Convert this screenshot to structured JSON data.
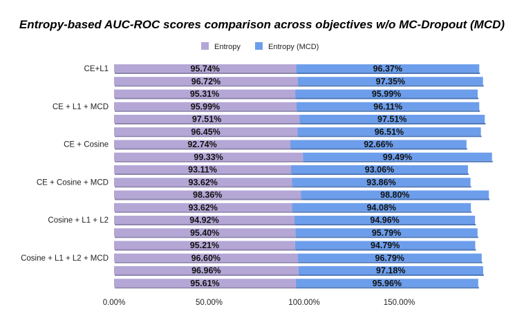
{
  "chart_data": {
    "type": "bar",
    "orientation": "horizontal",
    "stacked": true,
    "title": "Entropy-based AUC-ROC scores comparison across objectives w/o MC-Dropout (MCD)",
    "xlabel": "",
    "ylabel": "",
    "xlim": [
      0,
      200
    ],
    "x_ticks": [
      "0.00%",
      "50.00%",
      "100.00%",
      "150.00%"
    ],
    "x_tick_values": [
      0,
      50,
      100,
      150
    ],
    "grid": false,
    "legend_position": "top",
    "series": [
      {
        "name": "Entropy",
        "color": "#b4a7d6",
        "shadow": "#8e84ad",
        "values": [
          95.74,
          96.72,
          95.31,
          95.99,
          97.51,
          96.45,
          92.74,
          99.33,
          93.11,
          93.62,
          98.36,
          93.62,
          94.92,
          95.4,
          95.21,
          96.6,
          96.96,
          95.61
        ],
        "labels": [
          "95.74%",
          "96.72%",
          "95.31%",
          "95.99%",
          "97.51%",
          "96.45%",
          "92.74%",
          "99.33%",
          "93.11%",
          "93.62%",
          "98.36%",
          "93.62%",
          "94.92%",
          "95.40%",
          "95.21%",
          "96.60%",
          "96.96%",
          "95.61%"
        ]
      },
      {
        "name": "Entropy (MCD)",
        "color": "#6d9eeb",
        "shadow": "#4f78b8",
        "values": [
          96.37,
          97.35,
          95.99,
          96.11,
          97.51,
          96.51,
          92.66,
          99.49,
          93.06,
          93.86,
          98.8,
          94.08,
          94.96,
          95.79,
          94.79,
          96.79,
          97.18,
          95.96
        ],
        "labels": [
          "96.37%",
          "97.35%",
          "95.99%",
          "96.11%",
          "97.51%",
          "96.51%",
          "92.66%",
          "99.49%",
          "93.06%",
          "93.86%",
          "98.80%",
          "94.08%",
          "94.96%",
          "95.79%",
          "94.79%",
          "96.79%",
          "97.18%",
          "95.96%"
        ]
      }
    ],
    "categories": [
      "CE+L1",
      "",
      "",
      "CE + L1 + MCD",
      "",
      "",
      "CE + Cosine",
      "",
      "",
      "CE + Cosine + MCD",
      "",
      "",
      "Cosine + L1 + L2",
      "",
      "",
      "Cosine + L1 + L2 + MCD",
      "",
      ""
    ]
  }
}
